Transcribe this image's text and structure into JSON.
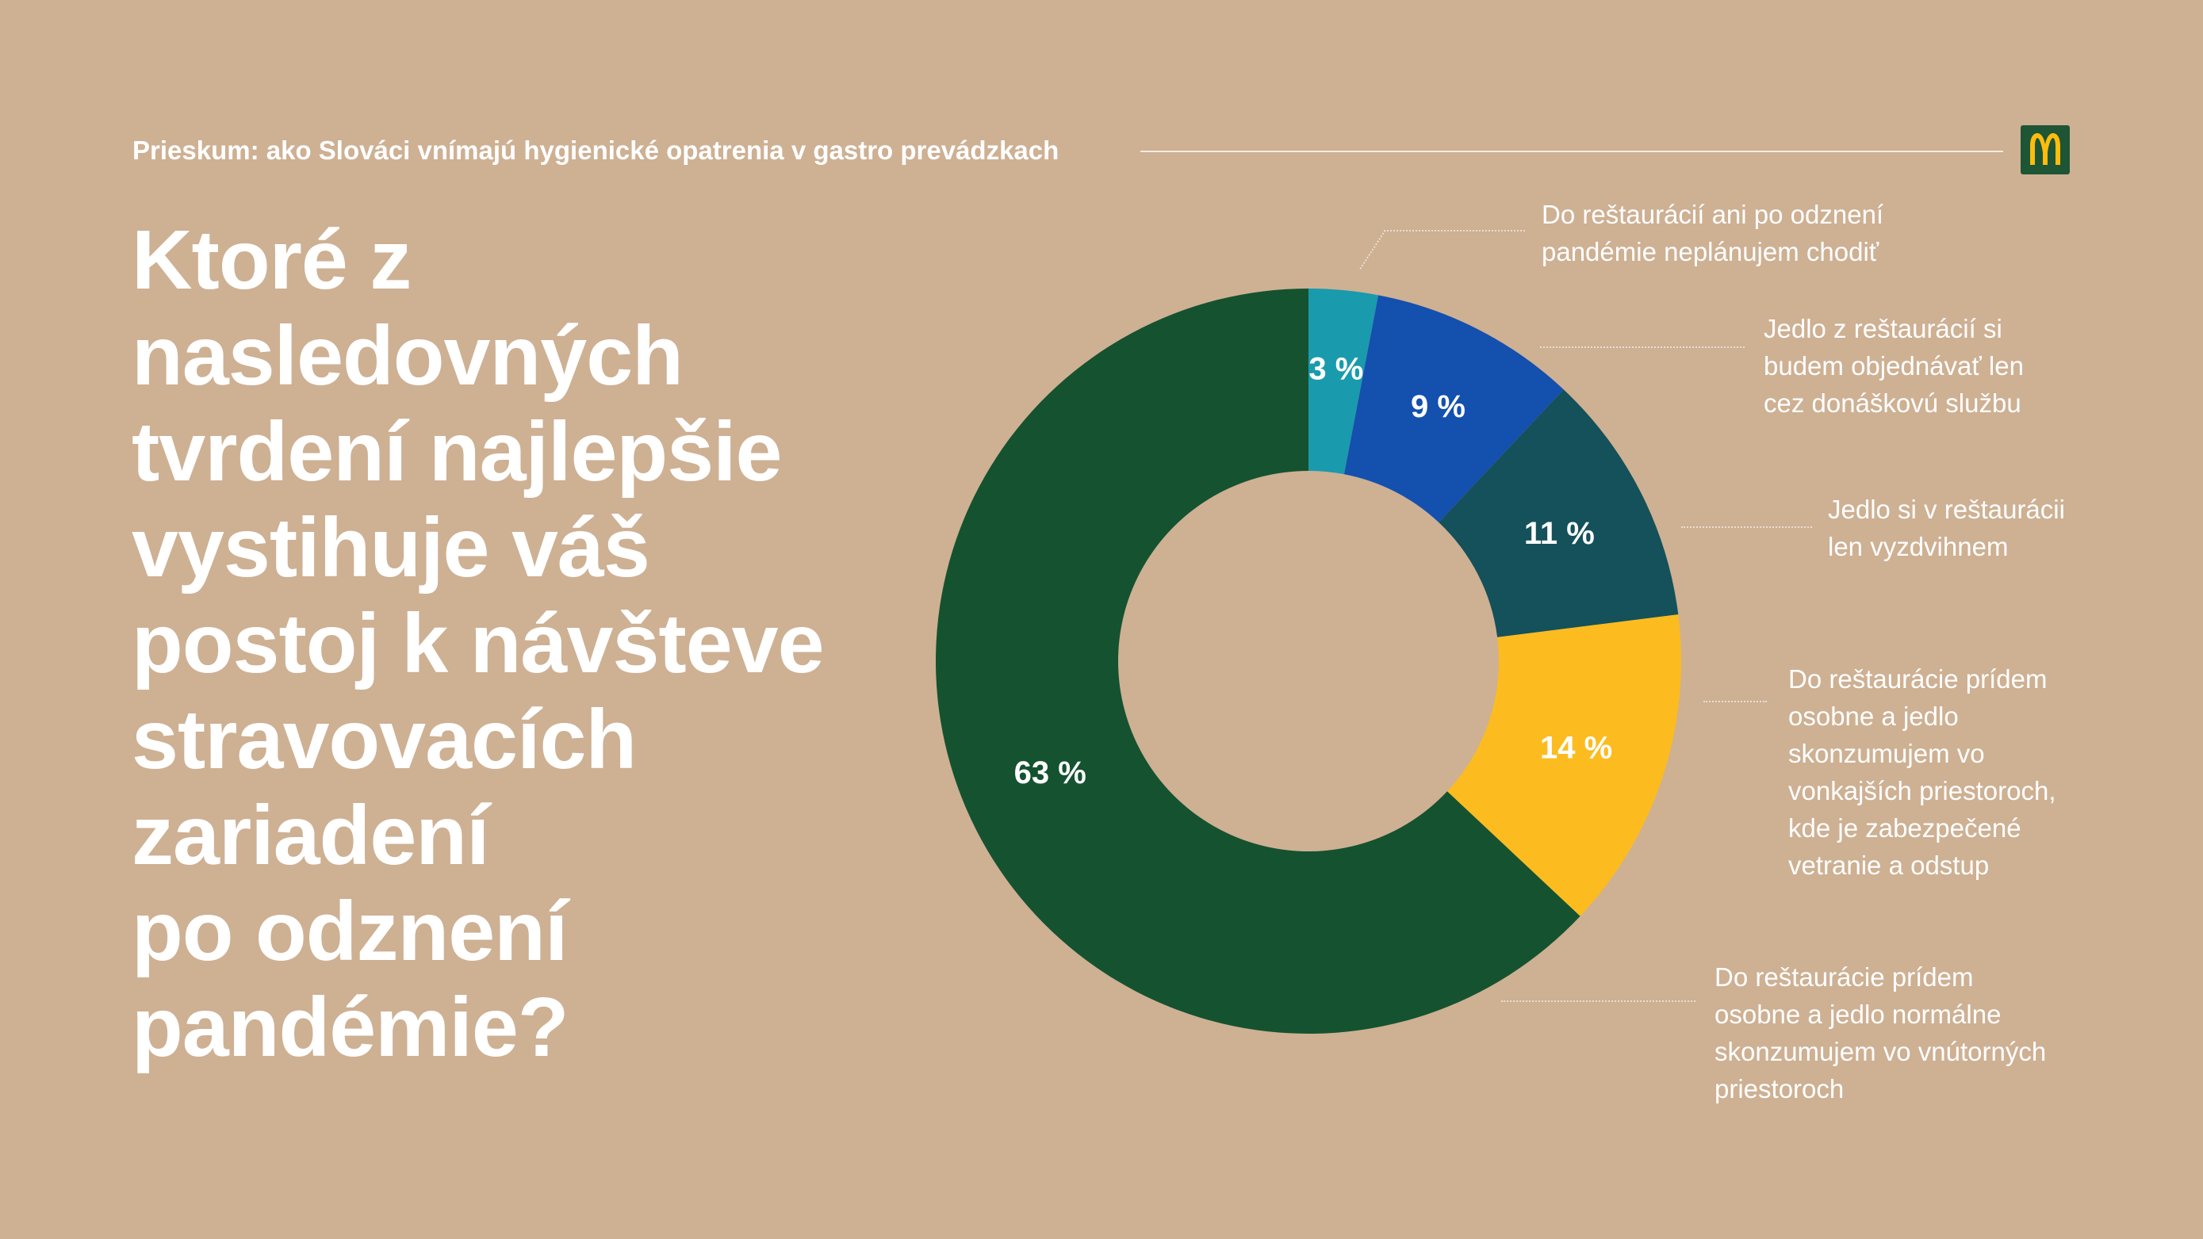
{
  "header": {
    "title": "Prieskum: ako Slováci vnímajú hygienické opatrenia v gastro prevádzkach",
    "logo_icon": "golden-arches-logo-icon",
    "logo_bg_color": "#1d5535",
    "logo_color": "#ffbc0d"
  },
  "question": {
    "lines": [
      "Ktoré z",
      "nasledovných",
      "tvrdení najlepšie",
      "vystihuje váš",
      "postoj k návšteve",
      "stravovacích",
      "zariadení",
      "po odznení",
      "pandémie?"
    ]
  },
  "chart_data": {
    "type": "pie",
    "donut": true,
    "start_angle_deg": 0,
    "direction": "clockwise",
    "unit": "%",
    "slices": [
      {
        "value": 3,
        "label_text": "3 %",
        "color": "#1a9aad",
        "legend_lines": [
          "Do reštaurácií ani po odznení",
          "pandémie neplánujem chodiť"
        ]
      },
      {
        "value": 9,
        "label_text": "9 %",
        "color": "#1450ae",
        "legend_lines": [
          "Jedlo z reštaurácií si",
          "budem objednávať len",
          "cez donáškovú službu"
        ]
      },
      {
        "value": 11,
        "label_text": "11 %",
        "color": "#14515a",
        "legend_lines": [
          "Jedlo si v reštaurácii",
          "len vyzdvihnem"
        ]
      },
      {
        "value": 14,
        "label_text": "14 %",
        "color": "#fcbc1f",
        "legend_lines": [
          "Do reštaurácie prídem",
          "osobne a jedlo",
          "skonzumujem vo",
          "vonkajších priestoroch,",
          "kde je zabezpečené",
          "vetranie a odstup"
        ]
      },
      {
        "value": 63,
        "label_text": "63 %",
        "color": "#155230",
        "legend_lines": [
          "Do reštaurácie prídem",
          "osobne a jedlo normálne",
          "skonzumujem vo vnútorných",
          "priestoroch"
        ]
      }
    ]
  }
}
